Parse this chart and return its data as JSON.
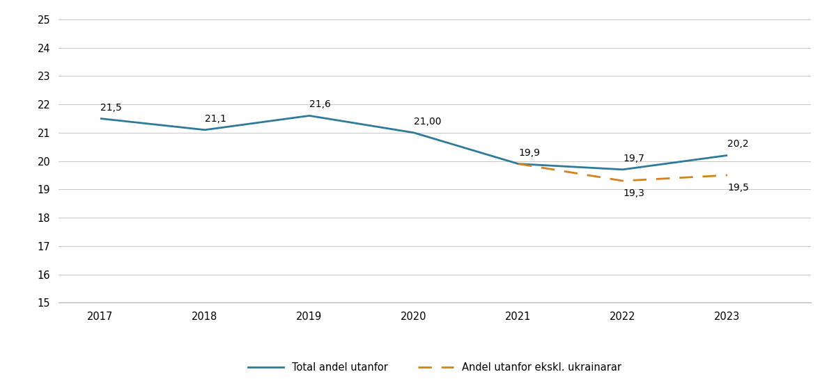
{
  "years": [
    2017,
    2018,
    2019,
    2020,
    2021,
    2022,
    2023
  ],
  "total_values": [
    21.5,
    21.1,
    21.6,
    21.0,
    19.9,
    19.7,
    20.2
  ],
  "excl_values": [
    null,
    null,
    null,
    null,
    19.9,
    19.3,
    19.5
  ],
  "total_labels": [
    "21,5",
    "21,1",
    "21,6",
    "21,00",
    "19,9",
    "19,7",
    "20,2"
  ],
  "excl_labels": [
    "19,3",
    "19,5"
  ],
  "excl_label_years": [
    2022,
    2023
  ],
  "excl_label_vals": [
    19.3,
    19.5
  ],
  "total_color": "#2e7a9a",
  "excl_color": "#d4821e",
  "background_color": "#ffffff",
  "grid_color": "#c8c8c8",
  "ylim": [
    15,
    25
  ],
  "yticks": [
    15,
    16,
    17,
    18,
    19,
    20,
    21,
    22,
    23,
    24,
    25
  ],
  "xlim_left": 2016.6,
  "xlim_right": 2023.8,
  "legend_total": "Total andel utanfor",
  "legend_excl": "Andel utanfor ekskl. ukrainarar",
  "label_fontsize": 10,
  "tick_fontsize": 10.5,
  "legend_fontsize": 10.5,
  "linewidth": 2.0
}
